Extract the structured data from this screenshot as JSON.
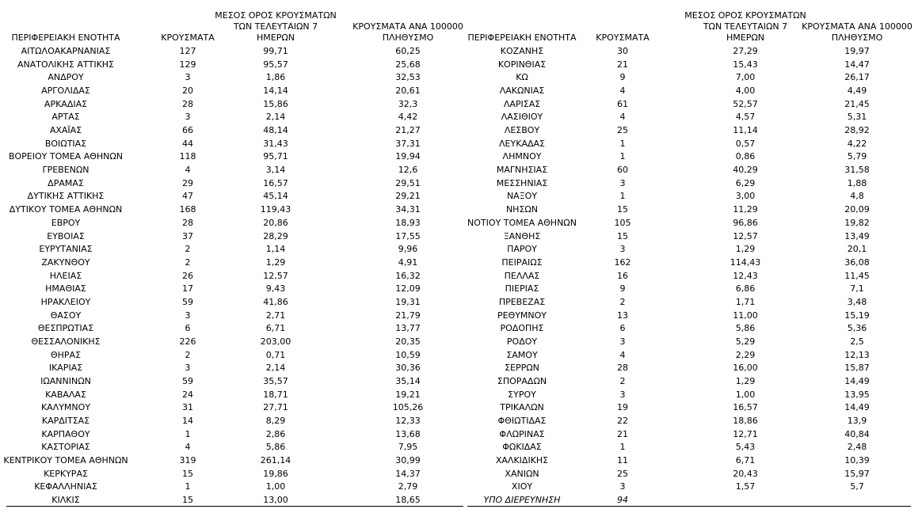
{
  "tables": [
    {
      "headers": [
        [
          "ΠΕΡΙΦΕΡΕΙΑΚΗ ΕΝΟΤΗΤΑ"
        ],
        [
          "ΚΡΟΥΣΜΑΤΑ"
        ],
        [
          "ΜΕΣΟΣ ΟΡΟΣ ΚΡΟΥΣΜΑΤΩΝ",
          "ΤΩΝ ΤΕΛΕΥΤΑΙΩΝ 7",
          "ΗΜΕΡΩΝ"
        ],
        [
          "ΚΡΟΥΣΜΑΤΑ ΑΝΑ 100000",
          "ΠΛΗΘΥΣΜΟ"
        ]
      ],
      "rows": [
        [
          "ΑΙΤΩΛΟΑΚΑΡΝΑΝΙΑΣ",
          "127",
          "99,71",
          "60,25"
        ],
        [
          "ΑΝΑΤΟΛΙΚΗΣ ΑΤΤΙΚΗΣ",
          "129",
          "95,57",
          "25,68"
        ],
        [
          "ΑΝΔΡΟΥ",
          "3",
          "1,86",
          "32,53"
        ],
        [
          "ΑΡΓΟΛΙΔΑΣ",
          "20",
          "14,14",
          "20,61"
        ],
        [
          "ΑΡΚΑΔΙΑΣ",
          "28",
          "15,86",
          "32,3"
        ],
        [
          "ΑΡΤΑΣ",
          "3",
          "2,14",
          "4,42"
        ],
        [
          "ΑΧΑΪΑΣ",
          "66",
          "48,14",
          "21,27"
        ],
        [
          "ΒΟΙΩΤΙΑΣ",
          "44",
          "31,43",
          "37,31"
        ],
        [
          "ΒΟΡΕΙΟΥ ΤΟΜΕΑ ΑΘΗΝΩΝ",
          "118",
          "95,71",
          "19,94"
        ],
        [
          "ΓΡΕΒΕΝΩΝ",
          "4",
          "3,14",
          "12,6"
        ],
        [
          "ΔΡΑΜΑΣ",
          "29",
          "16,57",
          "29,51"
        ],
        [
          "ΔΥΤΙΚΗΣ ΑΤΤΙΚΗΣ",
          "47",
          "45,14",
          "29,21"
        ],
        [
          "ΔΥΤΙΚΟΥ ΤΟΜΕΑ ΑΘΗΝΩΝ",
          "168",
          "119,43",
          "34,31"
        ],
        [
          "ΕΒΡΟΥ",
          "28",
          "20,86",
          "18,93"
        ],
        [
          "ΕΥΒΟΙΑΣ",
          "37",
          "28,29",
          "17,55"
        ],
        [
          "ΕΥΡΥΤΑΝΙΑΣ",
          "2",
          "1,14",
          "9,96"
        ],
        [
          "ΖΑΚΥΝΘΟΥ",
          "2",
          "1,29",
          "4,91"
        ],
        [
          "ΗΛΕΙΑΣ",
          "26",
          "12,57",
          "16,32"
        ],
        [
          "ΗΜΑΘΙΑΣ",
          "17",
          "9,43",
          "12,09"
        ],
        [
          "ΗΡΑΚΛΕΙΟΥ",
          "59",
          "41,86",
          "19,31"
        ],
        [
          "ΘΑΣΟΥ",
          "3",
          "2,71",
          "21,79"
        ],
        [
          "ΘΕΣΠΡΩΤΙΑΣ",
          "6",
          "6,71",
          "13,77"
        ],
        [
          "ΘΕΣΣΑΛΟΝΙΚΗΣ",
          "226",
          "203,00",
          "20,35"
        ],
        [
          "ΘΗΡΑΣ",
          "2",
          "0,71",
          "10,59"
        ],
        [
          "ΙΚΑΡΙΑΣ",
          "3",
          "2,14",
          "30,36"
        ],
        [
          "ΙΩΑΝΝΙΝΩΝ",
          "59",
          "35,57",
          "35,14"
        ],
        [
          "ΚΑΒΑΛΑΣ",
          "24",
          "18,71",
          "19,21"
        ],
        [
          "ΚΑΛΥΜΝΟΥ",
          "31",
          "27,71",
          "105,26"
        ],
        [
          "ΚΑΡΔΙΤΣΑΣ",
          "14",
          "8,29",
          "12,33"
        ],
        [
          "ΚΑΡΠΑΘΟΥ",
          "1",
          "2,86",
          "13,68"
        ],
        [
          "ΚΑΣΤΟΡΙΑΣ",
          "4",
          "5,86",
          "7,95"
        ],
        [
          "ΚΕΝΤΡΙΚΟΥ ΤΟΜΕΑ ΑΘΗΝΩΝ",
          "319",
          "261,14",
          "30,99"
        ],
        [
          "ΚΕΡΚΥΡΑΣ",
          "15",
          "19,86",
          "14,37"
        ],
        [
          "ΚΕΦΑΛΛΗΝΙΑΣ",
          "1",
          "1,00",
          "2,79"
        ],
        [
          "ΚΙΛΚΙΣ",
          "15",
          "13,00",
          "18,65"
        ]
      ]
    },
    {
      "headers": [
        [
          "ΠΕΡΙΦΕΡΕΙΑΚΗ ΕΝΟΤΗΤΑ"
        ],
        [
          "ΚΡΟΥΣΜΑΤΑ"
        ],
        [
          "ΜΕΣΟΣ ΟΡΟΣ ΚΡΟΥΣΜΑΤΩΝ",
          "ΤΩΝ ΤΕΛΕΥΤΑΙΩΝ 7",
          "ΗΜΕΡΩΝ"
        ],
        [
          "ΚΡΟΥΣΜΑΤΑ ΑΝΑ 100000",
          "ΠΛΗΘΥΣΜΟ"
        ]
      ],
      "rows": [
        [
          "ΚΟΖΑΝΗΣ",
          "30",
          "27,29",
          "19,97"
        ],
        [
          "ΚΟΡΙΝΘΙΑΣ",
          "21",
          "15,43",
          "14,47"
        ],
        [
          "ΚΩ",
          "9",
          "7,00",
          "26,17"
        ],
        [
          "ΛΑΚΩΝΙΑΣ",
          "4",
          "4,00",
          "4,49"
        ],
        [
          "ΛΑΡΙΣΑΣ",
          "61",
          "52,57",
          "21,45"
        ],
        [
          "ΛΑΣΙΘΙΟΥ",
          "4",
          "4,57",
          "5,31"
        ],
        [
          "ΛΕΣΒΟΥ",
          "25",
          "11,14",
          "28,92"
        ],
        [
          "ΛΕΥΚΑΔΑΣ",
          "1",
          "0,57",
          "4,22"
        ],
        [
          "ΛΗΜΝΟΥ",
          "1",
          "0,86",
          "5,79"
        ],
        [
          "ΜΑΓΝΗΣΙΑΣ",
          "60",
          "40,29",
          "31,58"
        ],
        [
          "ΜΕΣΣΗΝΙΑΣ",
          "3",
          "6,29",
          "1,88"
        ],
        [
          "ΝΑΞΟΥ",
          "1",
          "3,00",
          "4,8"
        ],
        [
          "ΝΗΣΩΝ",
          "15",
          "11,29",
          "20,09"
        ],
        [
          "ΝΟΤΙΟΥ ΤΟΜΕΑ ΑΘΗΝΩΝ",
          "105",
          "96,86",
          "19,82"
        ],
        [
          "ΞΑΝΘΗΣ",
          "15",
          "12,57",
          "13,49"
        ],
        [
          "ΠΑΡΟΥ",
          "3",
          "1,29",
          "20,1"
        ],
        [
          "ΠΕΙΡΑΙΩΣ",
          "162",
          "114,43",
          "36,08"
        ],
        [
          "ΠΕΛΛΑΣ",
          "16",
          "12,43",
          "11,45"
        ],
        [
          "ΠΙΕΡΙΑΣ",
          "9",
          "6,86",
          "7,1"
        ],
        [
          "ΠΡΕΒΕΖΑΣ",
          "2",
          "1,71",
          "3,48"
        ],
        [
          "ΡΕΘΥΜΝΟΥ",
          "13",
          "11,00",
          "15,19"
        ],
        [
          "ΡΟΔΟΠΗΣ",
          "6",
          "5,86",
          "5,36"
        ],
        [
          "ΡΟΔΟΥ",
          "3",
          "5,29",
          "2,5"
        ],
        [
          "ΣΑΜΟΥ",
          "4",
          "2,29",
          "12,13"
        ],
        [
          "ΣΕΡΡΩΝ",
          "28",
          "16,00",
          "15,87"
        ],
        [
          "ΣΠΟΡΑΔΩΝ",
          "2",
          "1,29",
          "14,49"
        ],
        [
          "ΣΥΡΟΥ",
          "3",
          "1,00",
          "13,95"
        ],
        [
          "ΤΡΙΚΑΛΩΝ",
          "19",
          "16,57",
          "14,49"
        ],
        [
          "ΦΘΙΩΤΙΔΑΣ",
          "22",
          "18,86",
          "13,9"
        ],
        [
          "ΦΛΩΡΙΝΑΣ",
          "21",
          "12,71",
          "40,84"
        ],
        [
          "ΦΩΚΙΔΑΣ",
          "1",
          "5,43",
          "2,48"
        ],
        [
          "ΧΑΛΚΙΔΙΚΗΣ",
          "11",
          "6,71",
          "10,39"
        ],
        [
          "ΧΑΝΙΩΝ",
          "25",
          "20,43",
          "15,97"
        ],
        [
          "ΧΙΟΥ",
          "3",
          "1,57",
          "5,7"
        ]
      ],
      "footer_row": [
        "ΥΠΟ ΔΙΕΡΕΥΝΗΣΗ",
        "94"
      ]
    }
  ]
}
